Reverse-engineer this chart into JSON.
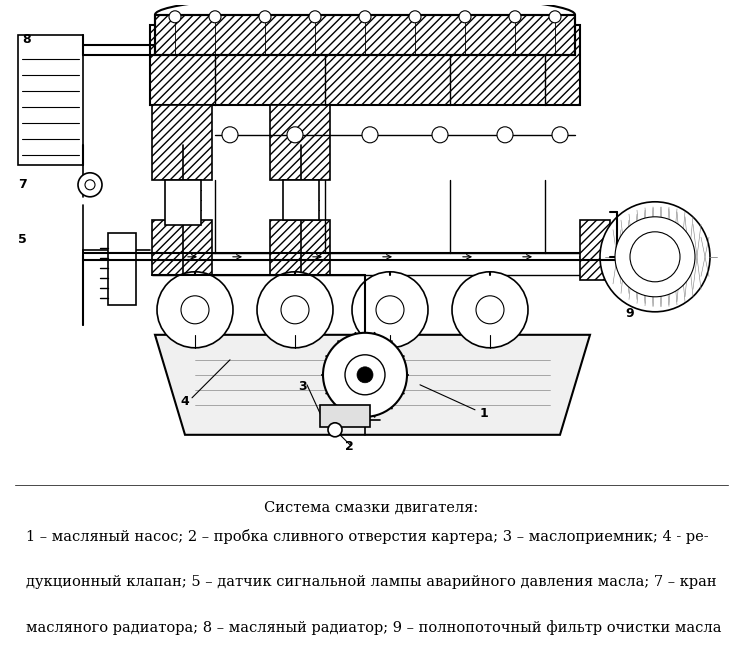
{
  "background_color": "#ffffff",
  "title": "Система смазки двигателя:",
  "caption_line1": "1 – масляный насос; 2 – пробка сливного отверстия картера; 3 – маслоприемник; 4 - ре-",
  "caption_line2": "дукционный клапан; 5 – датчик сигнальной лампы аварийного давления масла; 7 – кран",
  "caption_line3": "масляного радиатора; 8 – масляный радиатор; 9 – полнопоточный фильтр очистки масла",
  "fig_width": 7.43,
  "fig_height": 6.57,
  "dpi": 100
}
